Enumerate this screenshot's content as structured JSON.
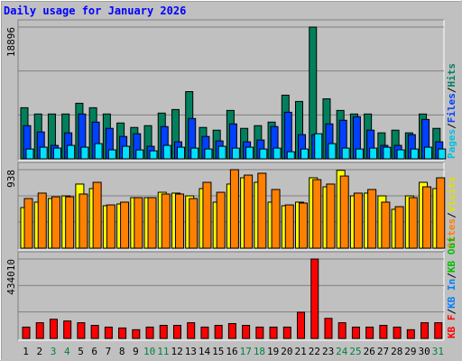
{
  "chart_data": {
    "type": "bar",
    "title": "Daily usage for January 2026",
    "categories": [
      "1",
      "2",
      "3",
      "4",
      "5",
      "6",
      "7",
      "8",
      "9",
      "10",
      "11",
      "12",
      "13",
      "14",
      "15",
      "16",
      "17",
      "18",
      "19",
      "20",
      "21",
      "22",
      "23",
      "24",
      "25",
      "26",
      "27",
      "28",
      "29",
      "30",
      "31"
    ],
    "category_colors": [
      "#000000",
      "#000000",
      "#008040",
      "#008040",
      "#000000",
      "#000000",
      "#000000",
      "#000000",
      "#000000",
      "#008040",
      "#008040",
      "#000000",
      "#000000",
      "#000000",
      "#000000",
      "#000000",
      "#008040",
      "#008040",
      "#000000",
      "#000000",
      "#000000",
      "#000000",
      "#000000",
      "#008040",
      "#008040",
      "#000000",
      "#000000",
      "#000000",
      "#000000",
      "#000000",
      "#008040"
    ],
    "panels": [
      {
        "ylim": [
          0,
          18896
        ],
        "yticks": [
          18896
        ],
        "legend": [
          "Pages",
          "/",
          "Files",
          "/",
          "Hits"
        ],
        "legend_colors": [
          "#00c0e0",
          "#000000",
          "#0040ff",
          "#000000",
          "#008060"
        ],
        "series": [
          {
            "color": "#00805c",
            "values": [
              7330,
              6430,
              6430,
              6430,
              7970,
              7330,
              6430,
              5140,
              4500,
              4760,
              6560,
              7070,
              9640,
              4500,
              4110,
              6940,
              4370,
              4760,
              5270,
              9130,
              8230,
              18896,
              8610,
              6940,
              6430,
              6430,
              3730,
              4110,
              3730,
              6430,
              4370
            ]
          },
          {
            "color": "#0040ff",
            "values": [
              4760,
              3860,
              1930,
              3730,
              6430,
              5270,
              4370,
              3210,
              3600,
              1800,
              4630,
              2440,
              5780,
              3210,
              2570,
              5010,
              2440,
              2700,
              4630,
              6680,
              3470,
              3470,
              5010,
              5530,
              6040,
              4110,
              1930,
              1930,
              3470,
              5650,
              2440
            ]
          },
          {
            "color": "#00e0ff",
            "values": [
              1410,
              1670,
              1540,
              1930,
              1670,
              2180,
              1290,
              1800,
              1280,
              1150,
              1930,
              1670,
              1540,
              1410,
              1800,
              1540,
              1670,
              1410,
              1540,
              1020,
              1410,
              3600,
              2180,
              1540,
              1410,
              1540,
              1670,
              1290,
              1410,
              1670,
              1410
            ]
          }
        ]
      },
      {
        "ylim": [
          0,
          938
        ],
        "yticks": [
          938
        ],
        "legend": [
          "Sites",
          "/",
          "Visits"
        ],
        "legend_colors": [
          "#ff8000",
          "#000000",
          "#e0e000"
        ],
        "series": [
          {
            "color": "#ffff00",
            "values": [
              485,
              550,
              593,
              625,
              766,
              712,
              507,
              528,
              604,
              604,
              668,
              658,
              625,
              712,
              550,
              766,
              841,
              787,
              550,
              507,
              550,
              841,
              733,
              930,
              625,
              658,
              625,
              464,
              625,
              787,
              712
            ]
          },
          {
            "color": "#ff8000",
            "values": [
              593,
              658,
              614,
              614,
              647,
              787,
              517,
              550,
              604,
              604,
              647,
              647,
              593,
              787,
              668,
              938,
              873,
              895,
              701,
              517,
              539,
              819,
              766,
              862,
              658,
              701,
              550,
              496,
              604,
              733,
              841
            ]
          }
        ]
      },
      {
        "ylim": [
          0,
          434010
        ],
        "yticks": [
          434010
        ],
        "legend": [
          "KB F",
          "/",
          "KB In",
          "/",
          "KB Out"
        ],
        "legend_colors": [
          "#ff0000",
          "#000000",
          "#0080ff",
          "#000000",
          "#00c000"
        ],
        "series": [
          {
            "color": "#ff0000",
            "values": [
              62000,
              85800,
              104900,
              95400,
              85800,
              71500,
              62000,
              57200,
              47700,
              62000,
              71500,
              71500,
              85800,
              62000,
              71500,
              81100,
              71500,
              62000,
              62000,
              62000,
              143000,
              434010,
              109700,
              85800,
              62000,
              62000,
              71500,
              62000,
              47700,
              85800,
              85800
            ]
          }
        ]
      }
    ]
  }
}
